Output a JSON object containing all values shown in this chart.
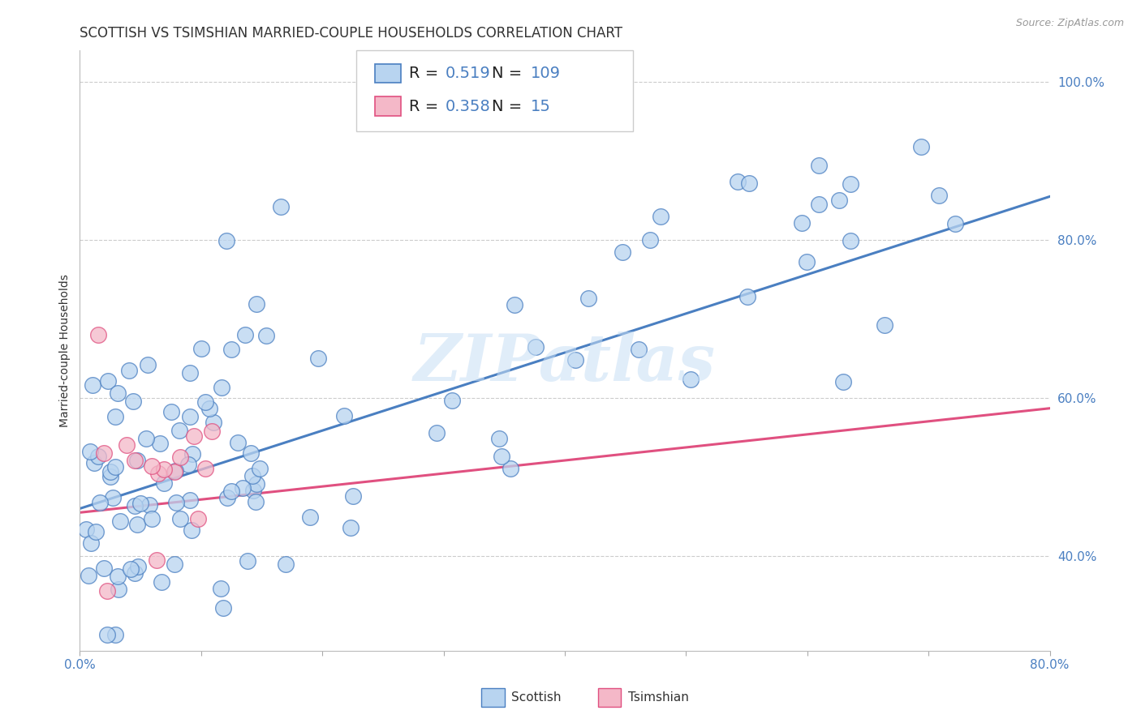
{
  "title": "SCOTTISH VS TSIMSHIAN MARRIED-COUPLE HOUSEHOLDS CORRELATION CHART",
  "source_text": "Source: ZipAtlas.com",
  "ylabel": "Married-couple Households",
  "xmin": 0.0,
  "xmax": 0.8,
  "ymin": 0.28,
  "ymax": 1.04,
  "yticks": [
    0.4,
    0.6,
    0.8,
    1.0
  ],
  "ytick_labels": [
    "40.0%",
    "60.0%",
    "80.0%",
    "100.0%"
  ],
  "watermark": "ZIPatlas",
  "legend_r_scottish": "0.519",
  "legend_n_scottish": "109",
  "legend_r_tsimshian": "0.358",
  "legend_n_tsimshian": "15",
  "scottish_color": "#b8d4f0",
  "tsimshian_color": "#f4b8c8",
  "scottish_line_color": "#4a7fc1",
  "tsimshian_line_color": "#e05080",
  "background_color": "#ffffff",
  "scottish_slope": 0.494,
  "scottish_intercept": 0.46,
  "tsimshian_slope": 0.165,
  "tsimshian_intercept": 0.455,
  "title_fontsize": 12,
  "axis_label_fontsize": 10,
  "tick_fontsize": 11,
  "legend_fontsize": 13
}
